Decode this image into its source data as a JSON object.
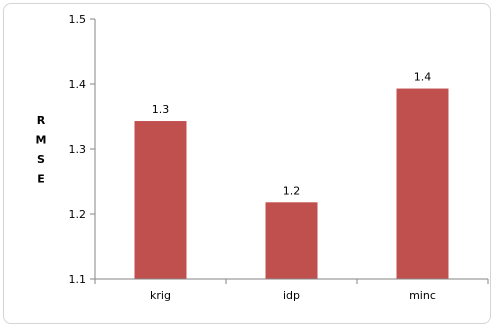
{
  "chart_data": {
    "type": "bar",
    "categories": [
      "krig",
      "idp",
      "minc"
    ],
    "values": [
      1.343,
      1.218,
      1.393
    ],
    "data_labels": [
      "1.3",
      "1.2",
      "1.4"
    ],
    "ylabel": "RMSE",
    "ylim": [
      1.1,
      1.5
    ],
    "yticks": [
      1.1,
      1.2,
      1.3,
      1.4,
      1.5
    ],
    "ytick_labels": [
      "1.1",
      "1.2",
      "1.3",
      "1.4",
      "1.5"
    ],
    "grid": false,
    "legend": "none",
    "bar_color": "#c0504d"
  }
}
